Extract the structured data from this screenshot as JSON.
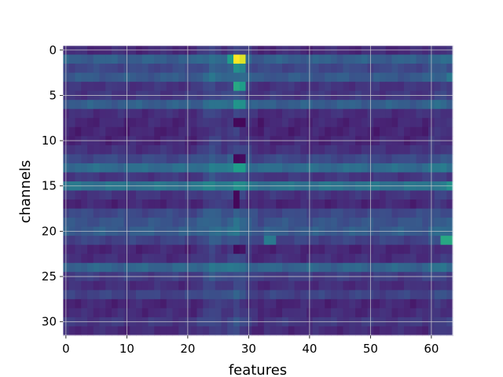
{
  "chart_data": {
    "type": "heatmap",
    "title": "",
    "xlabel": "features",
    "ylabel": "channels",
    "n_cols": 64,
    "n_rows": 32,
    "xlim": [
      -0.5,
      63.5
    ],
    "ylim": [
      31.5,
      -0.5
    ],
    "x_ticks": [
      0,
      10,
      20,
      30,
      40,
      50,
      60
    ],
    "y_ticks": [
      0,
      5,
      10,
      15,
      20,
      25,
      30
    ],
    "grid": true,
    "colormap": "viridis",
    "colormap_stops": [
      "#440154",
      "#482878",
      "#3e4989",
      "#31688e",
      "#26828e",
      "#1f9e89",
      "#35b779",
      "#6ece58",
      "#b5de2b",
      "#fde725"
    ],
    "row_base": [
      0.12,
      0.3,
      0.22,
      0.28,
      0.15,
      0.16,
      0.3,
      0.13,
      0.11,
      0.1,
      0.11,
      0.14,
      0.22,
      0.35,
      0.16,
      0.38,
      0.15,
      0.11,
      0.22,
      0.26,
      0.29,
      0.2,
      0.11,
      0.13,
      0.32,
      0.18,
      0.13,
      0.2,
      0.11,
      0.12,
      0.16,
      0.12
    ],
    "column_profile": [
      {
        "col": 22,
        "delta": 0.02
      },
      {
        "col": 23,
        "delta": 0.05
      },
      {
        "col": 24,
        "delta": 0.08
      },
      {
        "col": 25,
        "delta": 0.06
      },
      {
        "col": 26,
        "delta": 0.04
      },
      {
        "col": 27,
        "delta": 0.06
      },
      {
        "col": 28,
        "delta": 0.09
      },
      {
        "col": 29,
        "delta": 0.06
      },
      {
        "col": 30,
        "delta": 0.03
      },
      {
        "col": 32,
        "delta": -0.02
      },
      {
        "col": 60,
        "delta": 0.03
      },
      {
        "col": 61,
        "delta": 0.04
      },
      {
        "col": 62,
        "delta": 0.04
      },
      {
        "col": 63,
        "delta": 0.02
      }
    ],
    "highlight_cells": [
      {
        "row": 1,
        "col": 28,
        "value": 1.0
      },
      {
        "row": 1,
        "col": 29,
        "value": 0.95
      },
      {
        "row": 1,
        "col": 27,
        "value": 0.55
      },
      {
        "row": 2,
        "col": 28,
        "value": 0.5
      },
      {
        "row": 2,
        "col": 29,
        "value": 0.45
      },
      {
        "row": 4,
        "col": 28,
        "value": 0.6
      },
      {
        "row": 4,
        "col": 29,
        "value": 0.55
      },
      {
        "row": 6,
        "col": 28,
        "value": 0.52
      },
      {
        "row": 6,
        "col": 29,
        "value": 0.5
      },
      {
        "row": 13,
        "col": 28,
        "value": 0.55
      },
      {
        "row": 13,
        "col": 29,
        "value": 0.55
      },
      {
        "row": 15,
        "col": 28,
        "value": 0.5
      },
      {
        "row": 15,
        "col": 63,
        "value": 0.5
      },
      {
        "row": 21,
        "col": 62,
        "value": 0.6
      },
      {
        "row": 21,
        "col": 63,
        "value": 0.6
      },
      {
        "row": 21,
        "col": 33,
        "value": 0.42
      },
      {
        "row": 21,
        "col": 34,
        "value": 0.4
      },
      {
        "row": 3,
        "col": 63,
        "value": 0.4
      },
      {
        "row": 8,
        "col": 28,
        "value": 0.02
      },
      {
        "row": 8,
        "col": 29,
        "value": 0.02
      },
      {
        "row": 12,
        "col": 28,
        "value": 0.02
      },
      {
        "row": 12,
        "col": 29,
        "value": 0.03
      },
      {
        "row": 16,
        "col": 28,
        "value": 0.02
      },
      {
        "row": 17,
        "col": 28,
        "value": 0.02
      },
      {
        "row": 22,
        "col": 28,
        "value": 0.03
      },
      {
        "row": 22,
        "col": 29,
        "value": 0.05
      }
    ]
  }
}
